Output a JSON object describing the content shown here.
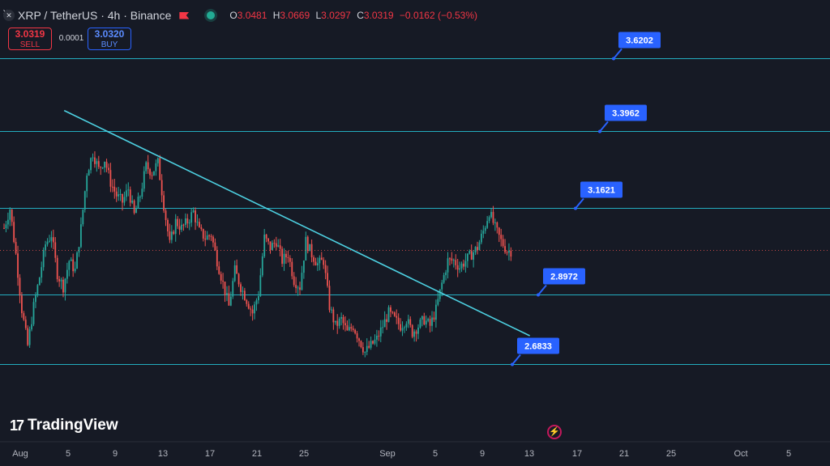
{
  "header": {
    "symbol_title": "XRP / TetherUS · 4h · Binance",
    "ohlc": [
      {
        "key": "O",
        "value": "3.0481"
      },
      {
        "key": "H",
        "value": "3.0669"
      },
      {
        "key": "L",
        "value": "3.0297"
      },
      {
        "key": "C",
        "value": "3.0319"
      },
      {
        "key": "",
        "value": "−0.0162 (−0.53%)"
      }
    ]
  },
  "trade": {
    "sell_price": "3.0319",
    "sell_label": "SELL",
    "spread": "0.0001",
    "buy_price": "3.0320",
    "buy_label": "BUY"
  },
  "branding": {
    "name": "TradingView"
  },
  "colors": {
    "background": "#161a25",
    "up": "#26a69a",
    "down": "#ef5350",
    "level_line": "#26c6da",
    "trendline": "#4dd0e1",
    "label_bg": "#2962ff"
  },
  "chart_data": {
    "type": "candlestick",
    "x_axis_labels": [
      "Aug",
      "5",
      "9",
      "13",
      "17",
      "21",
      "25",
      "Sep",
      "5",
      "9",
      "13",
      "17",
      "21",
      "25",
      "Oct",
      "5"
    ],
    "ylim": [
      2.55,
      3.72
    ],
    "horizontal_levels": [
      3.6202,
      3.3962,
      3.1621,
      2.8972,
      2.6833
    ],
    "level_labels": [
      "3.6202",
      "3.3962",
      "3.1621",
      "2.8972",
      "2.6833"
    ],
    "trendline": {
      "from": {
        "date": "Aug 3",
        "price": 3.46
      },
      "to": {
        "date": "Sep 11",
        "price": 2.77
      }
    },
    "last_price": 3.0319,
    "price_path": [
      [
        3.1,
        "Aug 1"
      ],
      [
        3.16,
        "Aug 1"
      ],
      [
        3.02,
        "Aug 2"
      ],
      [
        2.85,
        "Aug 2"
      ],
      [
        2.74,
        "Aug 3"
      ],
      [
        2.86,
        "Aug 3"
      ],
      [
        2.95,
        "Aug 4"
      ],
      [
        3.05,
        "Aug 4"
      ],
      [
        3.08,
        "Aug 5"
      ],
      [
        2.96,
        "Aug 5"
      ],
      [
        2.92,
        "Aug 6"
      ],
      [
        3.0,
        "Aug 6"
      ],
      [
        2.97,
        "Aug 7"
      ],
      [
        3.1,
        "Aug 7"
      ],
      [
        3.27,
        "Aug 8"
      ],
      [
        3.33,
        "Aug 8"
      ],
      [
        3.28,
        "Aug 9"
      ],
      [
        3.31,
        "Aug 9"
      ],
      [
        3.24,
        "Aug 10"
      ],
      [
        3.2,
        "Aug 10"
      ],
      [
        3.18,
        "Aug 11"
      ],
      [
        3.22,
        "Aug 11"
      ],
      [
        3.14,
        "Aug 12"
      ],
      [
        3.2,
        "Aug 12"
      ],
      [
        3.29,
        "Aug 13"
      ],
      [
        3.27,
        "Aug 13"
      ],
      [
        3.3,
        "Aug 14"
      ],
      [
        3.17,
        "Aug 14"
      ],
      [
        3.05,
        "Aug 15"
      ],
      [
        3.12,
        "Aug 15"
      ],
      [
        3.1,
        "Aug 16"
      ],
      [
        3.12,
        "Aug 16"
      ],
      [
        3.15,
        "Aug 17"
      ],
      [
        3.09,
        "Aug 17"
      ],
      [
        3.07,
        "Aug 18"
      ],
      [
        3.08,
        "Aug 18"
      ],
      [
        3.0,
        "Aug 19"
      ],
      [
        2.93,
        "Aug 19"
      ],
      [
        2.86,
        "Aug 20"
      ],
      [
        2.97,
        "Aug 20"
      ],
      [
        2.92,
        "Aug 21"
      ],
      [
        2.88,
        "Aug 21"
      ],
      [
        2.84,
        "Aug 22"
      ],
      [
        2.9,
        "Aug 22"
      ],
      [
        3.07,
        "Aug 23"
      ],
      [
        3.04,
        "Aug 23"
      ],
      [
        3.06,
        "Aug 24"
      ],
      [
        3.0,
        "Aug 24"
      ],
      [
        3.02,
        "Aug 25"
      ],
      [
        2.94,
        "Aug 25"
      ],
      [
        2.92,
        "Aug 26"
      ],
      [
        3.06,
        "Aug 26"
      ],
      [
        3.02,
        "Aug 27"
      ],
      [
        2.99,
        "Aug 27"
      ],
      [
        3.0,
        "Aug 28"
      ],
      [
        2.86,
        "Aug 28"
      ],
      [
        2.8,
        "Aug 29"
      ],
      [
        2.82,
        "Aug 29"
      ],
      [
        2.78,
        "Aug 30"
      ],
      [
        2.8,
        "Aug 30"
      ],
      [
        2.76,
        "Aug 31"
      ],
      [
        2.72,
        "Aug 31"
      ],
      [
        2.74,
        "Sep 1"
      ],
      [
        2.76,
        "Sep 1"
      ],
      [
        2.8,
        "Sep 2"
      ],
      [
        2.84,
        "Sep 2"
      ],
      [
        2.82,
        "Sep 3"
      ],
      [
        2.8,
        "Sep 3"
      ],
      [
        2.82,
        "Sep 4"
      ],
      [
        2.78,
        "Sep 4"
      ],
      [
        2.8,
        "Sep 5"
      ],
      [
        2.82,
        "Sep 5"
      ],
      [
        2.8,
        "Sep 6"
      ],
      [
        2.85,
        "Sep 6"
      ],
      [
        2.93,
        "Sep 7"
      ],
      [
        3.0,
        "Sep 7"
      ],
      [
        3.0,
        "Sep 8"
      ],
      [
        2.98,
        "Sep 8"
      ],
      [
        3.0,
        "Sep 9"
      ],
      [
        3.02,
        "Sep 9"
      ],
      [
        3.04,
        "Sep 10"
      ],
      [
        3.09,
        "Sep 10"
      ],
      [
        3.15,
        "Sep 11"
      ],
      [
        3.1,
        "Sep 11"
      ],
      [
        3.06,
        "Sep 12"
      ],
      [
        3.03,
        "Sep 12"
      ]
    ]
  }
}
